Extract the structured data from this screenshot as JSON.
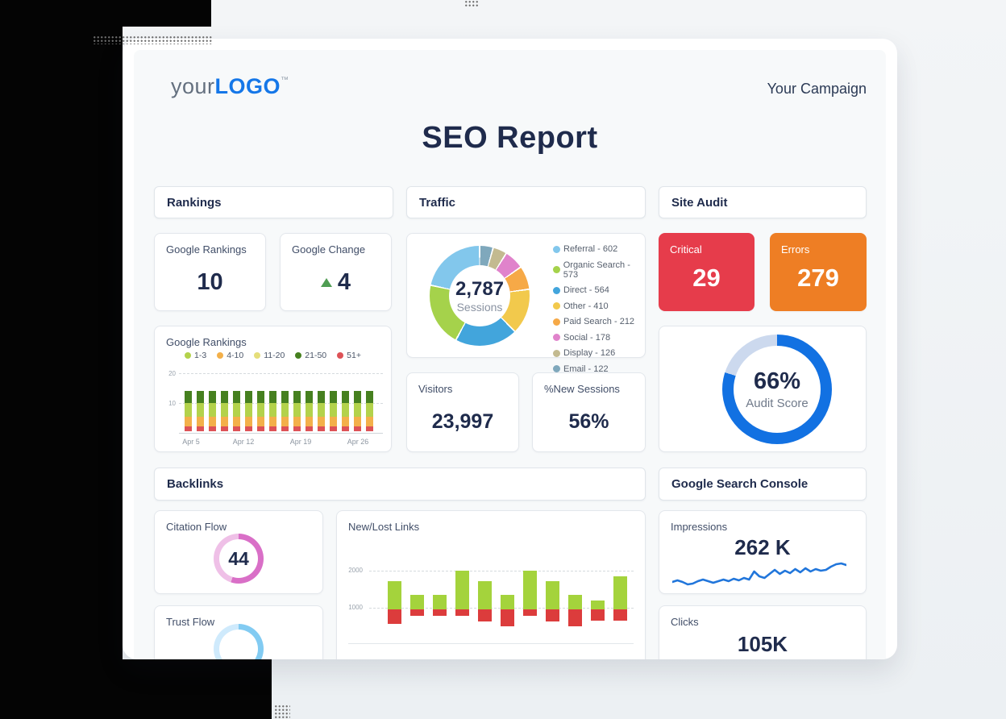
{
  "page": {
    "logo": {
      "prefix": "your",
      "name": "LOGO",
      "tm": "™"
    },
    "campaign": "Your Campaign",
    "report_title": "SEO Report"
  },
  "sections": {
    "rankings": "Rankings",
    "traffic": "Traffic",
    "site_audit": "Site Audit",
    "backlinks": "Backlinks",
    "gsc": "Google Search Console"
  },
  "cards": {
    "google_rankings": {
      "label": "Google Rankings",
      "value": "10"
    },
    "google_change": {
      "label": "Google Change",
      "value": "4",
      "direction": "up"
    },
    "visitors": {
      "label": "Visitors",
      "value": "23,997"
    },
    "new_sessions": {
      "label": "%New Sessions",
      "value": "56%"
    },
    "critical": {
      "label": "Critical",
      "value": "29",
      "bg": "#e63c4b"
    },
    "errors": {
      "label": "Errors",
      "value": "279",
      "bg": "#ee7e24"
    },
    "citation_flow": {
      "label": "Citation Flow",
      "value": "44"
    },
    "trust_flow": {
      "label": "Trust Flow"
    },
    "impressions": {
      "label": "Impressions",
      "value": "262 K"
    },
    "clicks": {
      "label": "Clicks",
      "value": "105K"
    }
  },
  "chart_data": [
    {
      "id": "rankings_chart",
      "type": "bar",
      "stacked": true,
      "title": "Google Rankings",
      "legend": [
        {
          "label": "1-3",
          "color": "#b3d24b"
        },
        {
          "label": "4-10",
          "color": "#f3b04a"
        },
        {
          "label": "11-20",
          "color": "#e5de7a"
        },
        {
          "label": "21-50",
          "color": "#46801f"
        },
        {
          "label": "51+",
          "color": "#dd5257"
        }
      ],
      "x_ticks": [
        "Apr 5",
        "Apr 12",
        "Apr 19",
        "Apr 26"
      ],
      "y_ticks": [
        20,
        10
      ],
      "ylim": [
        0,
        20
      ],
      "bar_count": 16,
      "stack_per_bar": [
        {
          "label": "51+",
          "value": 1.5,
          "color": "#dd5257"
        },
        {
          "label": "4-10",
          "value": 3.5,
          "color": "#f3b04a"
        },
        {
          "label": "1-3",
          "value": 4.5,
          "color": "#b3d24b"
        },
        {
          "label": "21-50",
          "value": 4,
          "color": "#46801f"
        }
      ]
    },
    {
      "id": "traffic_donut",
      "type": "pie",
      "center_value": "2,787",
      "center_label": "Sessions",
      "segments": [
        {
          "label": "Referral",
          "value": 602,
          "color": "#82c7ec"
        },
        {
          "label": "Organic Search",
          "value": 573,
          "color": "#a5d24b"
        },
        {
          "label": "Direct",
          "value": 564,
          "color": "#42a5dc"
        },
        {
          "label": "Other",
          "value": 410,
          "color": "#f2c94c"
        },
        {
          "label": "Paid Search",
          "value": 212,
          "color": "#f6a947"
        },
        {
          "label": "Social",
          "value": 178,
          "color": "#e083cb"
        },
        {
          "label": "Display",
          "value": 126,
          "color": "#c3ba90"
        },
        {
          "label": "Email",
          "value": 122,
          "color": "#7fa8bc"
        }
      ]
    },
    {
      "id": "audit_donut",
      "type": "pie",
      "value_text": "66%",
      "label": "Audit Score",
      "fill_pct": 80,
      "fill_color": "#1271e2",
      "rest_color": "#ccd9ee"
    },
    {
      "id": "citation_ring",
      "type": "pie",
      "value_text": "44",
      "split_pct": 55,
      "colors": [
        "#d96fc7",
        "#efc0e7"
      ]
    },
    {
      "id": "trust_ring",
      "type": "pie",
      "split_pct": 55,
      "colors": [
        "#82cbf2",
        "#cfeafc"
      ]
    },
    {
      "id": "newlost_chart",
      "type": "bar",
      "title": "New/Lost Links",
      "y_ticks": [
        2000,
        1000
      ],
      "pivot": 950,
      "new_color": "#a4d33c",
      "lost_color": "#dc3c3c",
      "bars": [
        {
          "new": 1720,
          "lost": 570
        },
        {
          "new": 1350,
          "lost": 790
        },
        {
          "new": 1350,
          "lost": 790
        },
        {
          "new": 2010,
          "lost": 790
        },
        {
          "new": 1720,
          "lost": 640
        },
        {
          "new": 1350,
          "lost": 500
        },
        {
          "new": 2010,
          "lost": 780
        },
        {
          "new": 1720,
          "lost": 640
        },
        {
          "new": 1350,
          "lost": 500
        },
        {
          "new": 1200,
          "lost": 650
        },
        {
          "new": 1850,
          "lost": 650
        }
      ]
    },
    {
      "id": "impressions_spark",
      "type": "line",
      "color": "#2176db",
      "y": [
        28,
        26,
        28,
        31,
        30,
        27,
        25,
        27,
        29,
        27,
        25,
        27,
        24,
        26,
        23,
        25,
        15,
        21,
        23,
        18,
        13,
        18,
        14,
        17,
        12,
        16,
        11,
        15,
        12,
        14,
        13,
        9,
        6,
        5,
        7
      ]
    }
  ]
}
